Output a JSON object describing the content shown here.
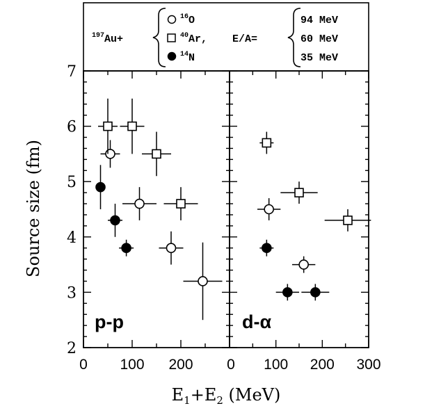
{
  "chart_data": {
    "type": "scatter",
    "panels": [
      {
        "label": "p-p",
        "xlim": [
          0,
          300
        ],
        "series": [
          {
            "marker": "open-circle",
            "points": [
              {
                "x": 55,
                "y": 5.5,
                "xerr": 20,
                "yerr": 0.25
              },
              {
                "x": 115,
                "y": 4.6,
                "xerr": 35,
                "yerr": 0.3
              },
              {
                "x": 180,
                "y": 3.8,
                "xerr": 25,
                "yerr": 0.3
              },
              {
                "x": 245,
                "y": 3.2,
                "xerr": 40,
                "yerr": 0.7
              }
            ]
          },
          {
            "marker": "open-square",
            "points": [
              {
                "x": 50,
                "y": 6.0,
                "xerr": 20,
                "yerr": 0.5
              },
              {
                "x": 100,
                "y": 6.0,
                "xerr": 25,
                "yerr": 0.5
              },
              {
                "x": 150,
                "y": 5.5,
                "xerr": 30,
                "yerr": 0.4
              },
              {
                "x": 200,
                "y": 4.6,
                "xerr": 35,
                "yerr": 0.3
              }
            ]
          },
          {
            "marker": "filled-circle",
            "points": [
              {
                "x": 35,
                "y": 4.9,
                "xerr": 10,
                "yerr": 0.4
              },
              {
                "x": 65,
                "y": 4.3,
                "xerr": 15,
                "yerr": 0.3
              },
              {
                "x": 88,
                "y": 3.8,
                "xerr": 15,
                "yerr": 0.15
              }
            ]
          }
        ]
      },
      {
        "label": "d-α",
        "xlim": [
          0,
          300
        ],
        "series": [
          {
            "marker": "open-circle",
            "points": [
              {
                "x": 85,
                "y": 4.5,
                "xerr": 25,
                "yerr": 0.2
              },
              {
                "x": 160,
                "y": 3.5,
                "xerr": 25,
                "yerr": 0.15
              }
            ]
          },
          {
            "marker": "open-square",
            "points": [
              {
                "x": 80,
                "y": 5.7,
                "xerr": 15,
                "yerr": 0.2
              },
              {
                "x": 150,
                "y": 4.8,
                "xerr": 40,
                "yerr": 0.2
              },
              {
                "x": 255,
                "y": 4.3,
                "xerr": 50,
                "yerr": 0.2
              }
            ]
          },
          {
            "marker": "filled-circle",
            "points": [
              {
                "x": 80,
                "y": 3.8,
                "xerr": 15,
                "yerr": 0.15
              },
              {
                "x": 125,
                "y": 3.0,
                "xerr": 25,
                "yerr": 0.15
              },
              {
                "x": 185,
                "y": 3.0,
                "xerr": 30,
                "yerr": 0.15
              }
            ]
          }
        ]
      }
    ],
    "ylim": [
      2,
      7
    ],
    "ylabel": "Source size (fm)",
    "xlabel": {
      "text": "E",
      "sub1": "1",
      "plus": "+E",
      "sub2": "2",
      "unit": " (MeV)"
    },
    "yticks": [
      "2",
      "3",
      "4",
      "5",
      "6",
      "7"
    ],
    "xticks_left": [
      "0",
      "100",
      "200"
    ],
    "xticks_right": [
      "0",
      "100",
      "200",
      "300"
    ],
    "legend": {
      "projectile_prefix": "Au+",
      "projectile_mass": "197",
      "entries": [
        {
          "marker": "open-circle",
          "mass": "16",
          "symbol": "O",
          "suffix": ""
        },
        {
          "marker": "open-square",
          "mass": "40",
          "symbol": "Ar",
          "suffix": ","
        },
        {
          "marker": "filled-circle",
          "mass": "14",
          "symbol": "N",
          "suffix": ""
        }
      ],
      "energy_label": "E/A=",
      "energies": [
        "94 MeV",
        "60 MeV",
        "35 MeV"
      ]
    }
  }
}
